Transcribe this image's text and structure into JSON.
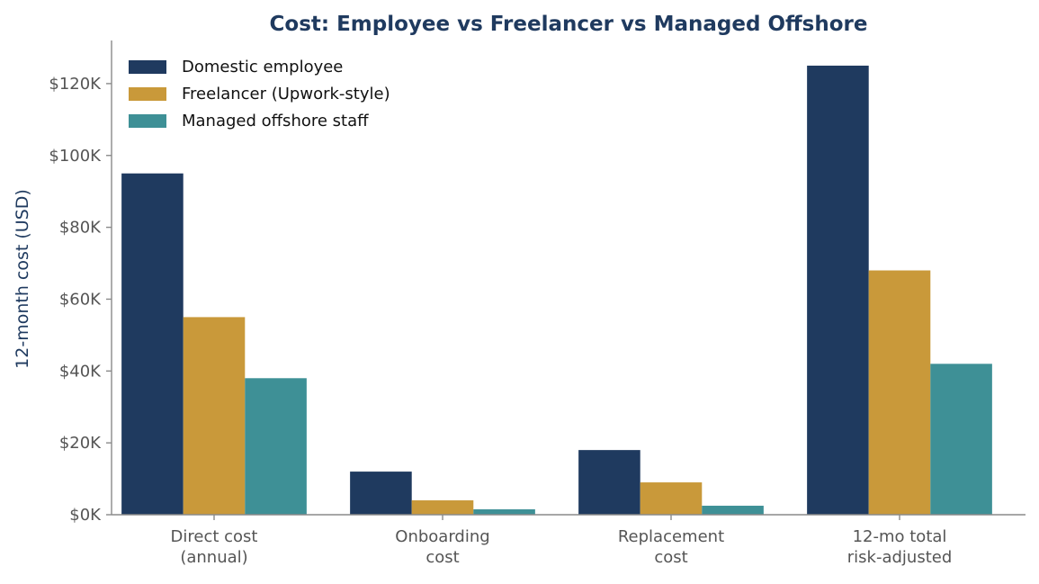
{
  "chart_data": {
    "type": "bar",
    "title": "Cost: Employee vs Freelancer vs Managed Offshore",
    "ylabel": "12-month cost (USD)",
    "xlabel": "",
    "ylim": [
      0,
      132000
    ],
    "yticks": [
      0,
      20000,
      40000,
      60000,
      80000,
      100000,
      120000
    ],
    "ytick_labels": [
      "$0K",
      "$20K",
      "$40K",
      "$60K",
      "$80K",
      "$100K",
      "$120K"
    ],
    "categories": [
      [
        "Direct cost",
        "(annual)"
      ],
      [
        "Onboarding",
        "cost"
      ],
      [
        "Replacement",
        "cost"
      ],
      [
        "12-mo total",
        "risk-adjusted"
      ]
    ],
    "series": [
      {
        "name": "Domestic employee",
        "color": "#1f3a5f",
        "values": [
          95000,
          12000,
          18000,
          125000
        ]
      },
      {
        "name": "Freelancer (Upwork-style)",
        "color": "#c9993a",
        "values": [
          55000,
          4000,
          9000,
          68000
        ]
      },
      {
        "name": "Managed offshore staff",
        "color": "#3e9096",
        "values": [
          38000,
          1500,
          2500,
          42000
        ]
      }
    ],
    "legend": "top-left",
    "grid": false
  }
}
